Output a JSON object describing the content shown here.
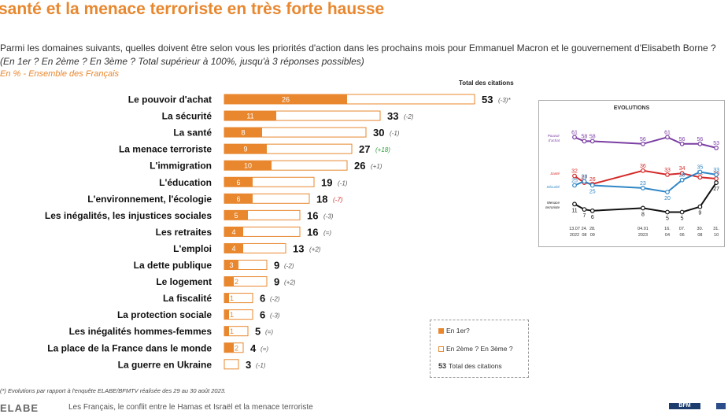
{
  "header": {
    "headline": "santé et la menace terroriste en très forte hausse",
    "question": "Parmi les domaines suivants, quelles doivent être selon vous les priorités d'action dans les prochains mois pour Emmanuel Macron et le gouvernement d'Elisabeth Borne ?",
    "question_note": "(En 1er ? En 2ème ? En 3ème ? Total supérieur à 100%, jusqu'à 3 réponses possibles)",
    "subtitle": "En % - Ensemble des Français"
  },
  "chart_data": [
    {
      "type": "bar",
      "title": "Total des citations",
      "categories": [
        "Le pouvoir d'achat",
        "La sécurité",
        "La santé",
        "La menace terroriste",
        "L'immigration",
        "L'éducation",
        "L'environnement, l'écologie",
        "Les inégalités, les injustices sociales",
        "Les retraites",
        "L'emploi",
        "La dette publique",
        "Le logement",
        "La fiscalité",
        "La protection sociale",
        "Les inégalités hommes-femmes",
        "La place de la France dans le monde",
        "La guerre en Ukraine"
      ],
      "series": [
        {
          "name": "En 1er?",
          "values": [
            26,
            11,
            8,
            9,
            10,
            6,
            6,
            5,
            4,
            4,
            3,
            2,
            1,
            1,
            1,
            2,
            null
          ]
        },
        {
          "name": "Total des citations",
          "values": [
            53,
            33,
            30,
            27,
            26,
            19,
            18,
            16,
            16,
            13,
            9,
            9,
            6,
            6,
            5,
            4,
            3
          ]
        }
      ],
      "first_labels": [
        "26",
        "11",
        "8",
        "9",
        "10",
        "6",
        "6",
        "5",
        "4",
        "4",
        "3",
        "2",
        "1",
        "1",
        "1",
        "2",
        ""
      ],
      "evolutions": [
        "(-3)*",
        "(-2)",
        "(-1)",
        "(+18)",
        "(+1)",
        "(-1)",
        "(-7)",
        "(-3)",
        "(=)",
        "(+2)",
        "(-2)",
        "(+2)",
        "(-2)",
        "(-3)",
        "(=)",
        "(=)",
        "(-1)"
      ],
      "evolution_colors": [
        "#555",
        "#555",
        "#555",
        "#2e9e3e",
        "#555",
        "#555",
        "#d42a2a",
        "#555",
        "#555",
        "#555",
        "#555",
        "#555",
        "#555",
        "#555",
        "#555",
        "#555",
        "#555"
      ],
      "colors": {
        "first": "#e8872e",
        "border": "#e8872e",
        "other": "#ffffff"
      },
      "xlim": [
        0,
        60
      ]
    },
    {
      "type": "line",
      "title": "EVOLUTIONS",
      "x": [
        "13.07 2022",
        "24. 08",
        "28. 09",
        "04.01 2023",
        "16. 04",
        "07. 06",
        "30. 08",
        "31. 10"
      ],
      "x_tick_top": [
        "13.07",
        "24.",
        "28.",
        "04.01",
        "16.",
        "07.",
        "30.",
        "31."
      ],
      "x_tick_bottom": [
        "2022",
        "08",
        "09",
        "2023",
        "04",
        "06",
        "08",
        "10"
      ],
      "x_pos": [
        0,
        6,
        11,
        42,
        57,
        66,
        77,
        87
      ],
      "series": [
        {
          "name": "Pouvoir d'achat",
          "label_lines": [
            "Pouvoir",
            "d'achat"
          ],
          "color": "#7b3fa3",
          "values": [
            61,
            58,
            58,
            56,
            61,
            56,
            56,
            53
          ]
        },
        {
          "name": "Santé",
          "label_lines": [
            "Santé"
          ],
          "color": "#d42a2a",
          "values": [
            32,
            27,
            26,
            36,
            33,
            34,
            31,
            30
          ]
        },
        {
          "name": "Sécurité",
          "label_lines": [
            "Sécurité"
          ],
          "color": "#2f86c6",
          "values": [
            25,
            28,
            25,
            23,
            20,
            29,
            35,
            33
          ]
        },
        {
          "name": "Menace terroriste",
          "label_lines": [
            "Menace",
            "terroriste"
          ],
          "color": "#111111",
          "values": [
            11,
            7,
            6,
            8,
            5,
            5,
            9,
            27
          ]
        }
      ],
      "ylim": [
        0,
        70
      ]
    }
  ],
  "legend": {
    "first_label": "En 1er?",
    "other_label": "En 2ème ? En 3ème ?",
    "total_number": "53",
    "total_label": "Total des citations"
  },
  "footnote": "(*) Evolutions par rapport à l'enquête ELABE/BFMTV réalisée des 29 au 30 août 2023.",
  "bottom": {
    "logo": "ELABE",
    "strip": "Les Français, le conflit entre le Hamas et Israël et la menace terroriste",
    "badge": "BFM"
  }
}
